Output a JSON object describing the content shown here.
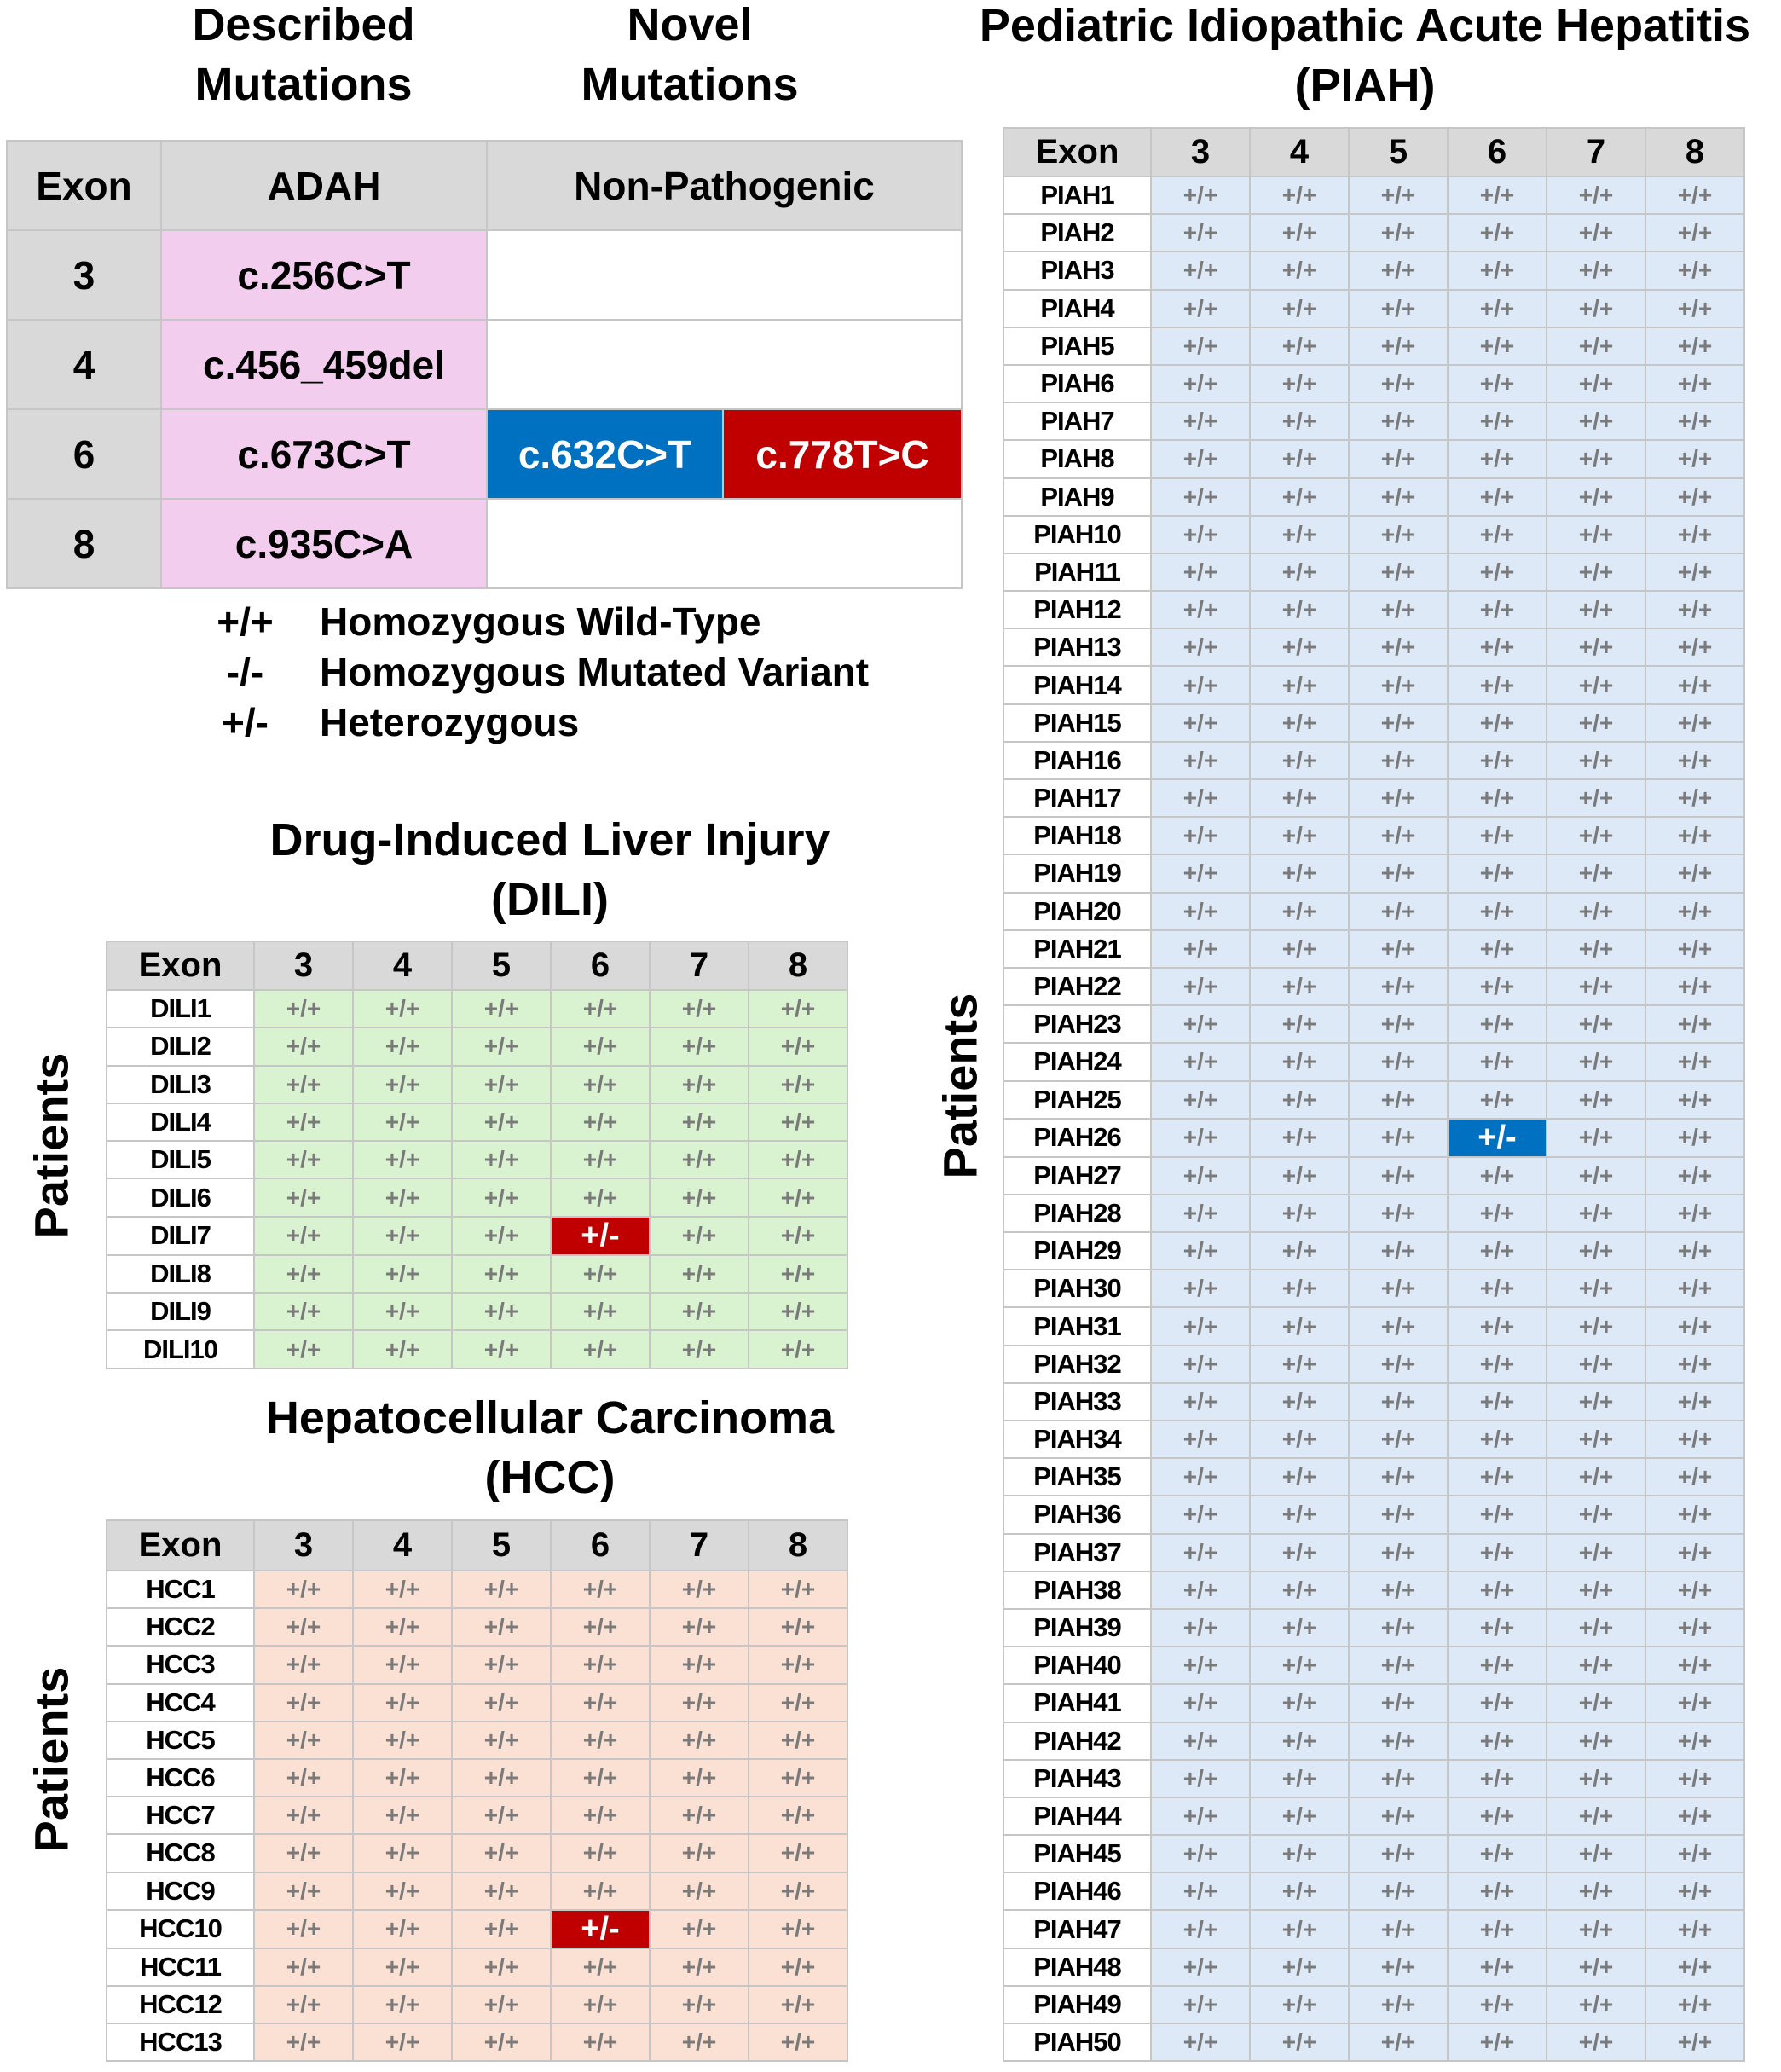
{
  "headings": {
    "described": [
      "Described",
      "Mutations"
    ],
    "novel": [
      "Novel",
      "Mutations"
    ],
    "piah": [
      "Pediatric Idiopathic Acute Hepatitis",
      "(PIAH)"
    ],
    "dili": [
      "Drug-Induced Liver Injury",
      "(DILI)"
    ],
    "hcc": [
      "Hepatocellular Carcinoma",
      "(HCC)"
    ]
  },
  "summary_table": {
    "headers": [
      "Exon",
      "ADAH",
      "Non-Pathogenic"
    ],
    "rows": [
      {
        "exon": "3",
        "adah": "c.256C>T",
        "non_pathogenic": []
      },
      {
        "exon": "4",
        "adah": "c.456_459del",
        "non_pathogenic": []
      },
      {
        "exon": "6",
        "adah": "c.673C>T",
        "non_pathogenic": [
          {
            "text": "c.632C>T",
            "color": "#0070c0"
          },
          {
            "text": "c.778T>C",
            "color": "#c00000"
          }
        ]
      },
      {
        "exon": "8",
        "adah": "c.935C>A",
        "non_pathogenic": []
      }
    ],
    "colors": {
      "header": "#d9d9d9",
      "adah": "#f2cdee"
    }
  },
  "legend": [
    {
      "symbol": "+/+",
      "meaning": "Homozygous Wild-Type"
    },
    {
      "symbol": "-/-",
      "meaning": "Homozygous Mutated Variant"
    },
    {
      "symbol": "+/-",
      "meaning": "Heterozygous"
    }
  ],
  "axis_label": "Patients",
  "exons": [
    "3",
    "4",
    "5",
    "6",
    "7",
    "8"
  ],
  "exon_header": "Exon",
  "default_genotype": "+/+",
  "cohorts": {
    "dili": {
      "fill": "#d9f2d0",
      "patients": [
        "DILI1",
        "DILI2",
        "DILI3",
        "DILI4",
        "DILI5",
        "DILI6",
        "DILI7",
        "DILI8",
        "DILI9",
        "DILI10"
      ],
      "variants": [
        {
          "patient": "DILI7",
          "exon": "6",
          "genotype": "+/-",
          "color": "#c00000"
        }
      ]
    },
    "hcc": {
      "fill": "#fbe0d4",
      "patients": [
        "HCC1",
        "HCC2",
        "HCC3",
        "HCC4",
        "HCC5",
        "HCC6",
        "HCC7",
        "HCC8",
        "HCC9",
        "HCC10",
        "HCC11",
        "HCC12",
        "HCC13"
      ],
      "variants": [
        {
          "patient": "HCC10",
          "exon": "6",
          "genotype": "+/-",
          "color": "#c00000"
        }
      ]
    },
    "piah": {
      "fill": "#dde9f6",
      "patients": [
        "PIAH1",
        "PIAH2",
        "PIAH3",
        "PIAH4",
        "PIAH5",
        "PIAH6",
        "PIAH7",
        "PIAH8",
        "PIAH9",
        "PIAH10",
        "PIAH11",
        "PIAH12",
        "PIAH13",
        "PIAH14",
        "PIAH15",
        "PIAH16",
        "PIAH17",
        "PIAH18",
        "PIAH19",
        "PIAH20",
        "PIAH21",
        "PIAH22",
        "PIAH23",
        "PIAH24",
        "PIAH25",
        "PIAH26",
        "PIAH27",
        "PIAH28",
        "PIAH29",
        "PIAH30",
        "PIAH31",
        "PIAH32",
        "PIAH33",
        "PIAH34",
        "PIAH35",
        "PIAH36",
        "PIAH37",
        "PIAH38",
        "PIAH39",
        "PIAH40",
        "PIAH41",
        "PIAH42",
        "PIAH43",
        "PIAH44",
        "PIAH45",
        "PIAH46",
        "PIAH47",
        "PIAH48",
        "PIAH49",
        "PIAH50"
      ],
      "variants": [
        {
          "patient": "PIAH26",
          "exon": "6",
          "genotype": "+/-",
          "color": "#0070c0"
        }
      ]
    }
  }
}
